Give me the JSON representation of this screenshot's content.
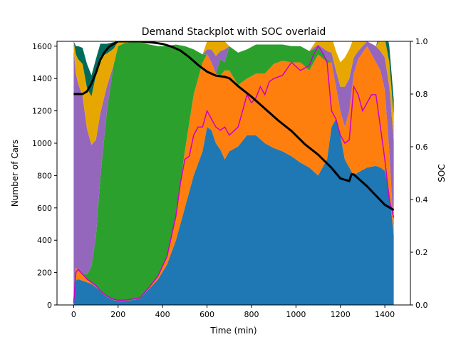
{
  "chart_data": {
    "type": "area",
    "title": "Demand Stackplot with SOC overlaid",
    "xlabel": "Time (min)",
    "ylabel": "Number of Cars",
    "y2label": "SOC",
    "xlim": [
      -75,
      1515
    ],
    "ylim": [
      0,
      1630
    ],
    "y2lim": [
      0.0,
      1.0
    ],
    "xticks": [
      0,
      200,
      400,
      600,
      800,
      1000,
      1200,
      1400
    ],
    "yticks": [
      0,
      200,
      400,
      600,
      800,
      1000,
      1200,
      1400,
      1600
    ],
    "y2ticks": [
      "0.0",
      "0.2",
      "0.4",
      "0.6",
      "0.8",
      "1.0"
    ],
    "x": [
      0,
      10,
      20,
      40,
      60,
      80,
      100,
      120,
      150,
      180,
      200,
      230,
      260,
      300,
      340,
      380,
      420,
      460,
      500,
      540,
      580,
      600,
      620,
      640,
      660,
      680,
      700,
      740,
      780,
      820,
      860,
      900,
      940,
      980,
      1020,
      1060,
      1100,
      1140,
      1160,
      1180,
      1200,
      1220,
      1240,
      1260,
      1280,
      1320,
      1360,
      1380,
      1400,
      1420,
      1440
    ],
    "series": [
      {
        "color": "#1f77b4",
        "values": [
          10,
          150,
          160,
          150,
          140,
          130,
          110,
          80,
          50,
          30,
          25,
          25,
          30,
          40,
          100,
          160,
          250,
          400,
          600,
          800,
          950,
          1100,
          1080,
          1000,
          960,
          900,
          950,
          980,
          1050,
          1050,
          1000,
          970,
          950,
          920,
          880,
          850,
          800,
          900,
          1100,
          1150,
          1050,
          900,
          850,
          800,
          820,
          850,
          860,
          850,
          830,
          700,
          430
        ]
      },
      {
        "color": "#ff7f0e",
        "values": [
          20,
          80,
          60,
          40,
          20,
          10,
          10,
          5,
          5,
          5,
          5,
          5,
          5,
          5,
          10,
          20,
          50,
          150,
          350,
          500,
          550,
          450,
          420,
          430,
          460,
          550,
          500,
          380,
          350,
          380,
          430,
          520,
          560,
          580,
          620,
          600,
          750,
          600,
          400,
          200,
          150,
          200,
          350,
          630,
          700,
          750,
          640,
          600,
          500,
          250,
          30
        ]
      },
      {
        "color": "#2ca02c",
        "values": [
          0,
          0,
          0,
          0,
          30,
          100,
          300,
          700,
          1150,
          1450,
          1570,
          1590,
          1590,
          1580,
          1500,
          1420,
          1300,
          1060,
          650,
          280,
          50,
          0,
          0,
          0,
          100,
          50,
          150,
          200,
          180,
          180,
          180,
          120,
          100,
          100,
          100,
          120,
          40,
          20,
          0,
          0,
          0,
          0,
          0,
          0,
          0,
          0,
          0,
          0,
          0,
          0,
          0
        ]
      },
      {
        "color": "#d62728",
        "values": [
          0,
          0,
          0,
          0,
          0,
          0,
          0,
          0,
          0,
          0,
          0,
          0,
          0,
          0,
          0,
          0,
          0,
          0,
          0,
          0,
          0,
          0,
          0,
          0,
          0,
          0,
          0,
          0,
          0,
          0,
          0,
          0,
          0,
          0,
          0,
          0,
          0,
          0,
          0,
          0,
          0,
          0,
          0,
          0,
          0,
          0,
          0,
          0,
          0,
          0,
          0
        ]
      },
      {
        "color": "#9467bd",
        "values": [
          1550,
          1200,
          1150,
          1100,
          900,
          750,
          600,
          400,
          150,
          0,
          0,
          0,
          0,
          0,
          0,
          0,
          0,
          0,
          0,
          0,
          0,
          30,
          80,
          110,
          50,
          80,
          0,
          0,
          0,
          0,
          0,
          0,
          0,
          0,
          0,
          0,
          20,
          50,
          60,
          100,
          150,
          250,
          200,
          100,
          50,
          30,
          100,
          120,
          200,
          400,
          560
        ]
      },
      {
        "color": "#e6a800",
        "values": [
          50,
          120,
          150,
          200,
          250,
          300,
          400,
          350,
          200,
          100,
          30,
          10,
          10,
          5,
          0,
          0,
          0,
          0,
          0,
          0,
          0,
          50,
          80,
          90,
          60,
          50,
          0,
          0,
          0,
          0,
          0,
          0,
          0,
          0,
          0,
          0,
          40,
          60,
          100,
          120,
          150,
          180,
          180,
          120,
          60,
          0,
          0,
          80,
          120,
          150,
          150
        ]
      },
      {
        "color": "#006b5a",
        "values": [
          0,
          50,
          80,
          100,
          150,
          130,
          100,
          80,
          60,
          40,
          0,
          0,
          0,
          0,
          0,
          0,
          0,
          0,
          0,
          0,
          0,
          0,
          0,
          0,
          0,
          0,
          0,
          0,
          0,
          0,
          0,
          0,
          0,
          0,
          0,
          0,
          0,
          0,
          0,
          0,
          0,
          0,
          0,
          0,
          0,
          0,
          0,
          40,
          100,
          100,
          100
        ]
      }
    ],
    "magenta_line": {
      "color": "#cc00cc",
      "x": [
        0,
        10,
        20,
        40,
        60,
        80,
        100,
        120,
        150,
        180,
        200,
        230,
        260,
        300,
        340,
        380,
        420,
        460,
        480,
        500,
        520,
        540,
        560,
        580,
        600,
        620,
        640,
        660,
        680,
        700,
        740,
        780,
        800,
        820,
        840,
        860,
        880,
        900,
        940,
        980,
        1020,
        1060,
        1080,
        1100,
        1120,
        1140,
        1160,
        1180,
        1200,
        1220,
        1240,
        1260,
        1280,
        1300,
        1320,
        1340,
        1360,
        1380,
        1400,
        1420,
        1440
      ],
      "values": [
        10,
        200,
        220,
        190,
        160,
        140,
        120,
        85,
        55,
        35,
        30,
        30,
        35,
        45,
        110,
        180,
        300,
        550,
        750,
        900,
        920,
        1050,
        1100,
        1100,
        1200,
        1150,
        1100,
        1080,
        1100,
        1050,
        1100,
        1300,
        1250,
        1280,
        1350,
        1300,
        1380,
        1400,
        1420,
        1500,
        1450,
        1480,
        1550,
        1600,
        1560,
        1500,
        1200,
        1150,
        1050,
        1000,
        1020,
        1350,
        1300,
        1200,
        1250,
        1300,
        1300,
        1100,
        900,
        650,
        540
      ]
    },
    "soc_line": {
      "color": "#000000",
      "x": [
        0,
        40,
        60,
        80,
        100,
        120,
        140,
        160,
        180,
        200,
        240,
        300,
        360,
        400,
        440,
        480,
        520,
        560,
        600,
        640,
        680,
        700,
        740,
        800,
        860,
        920,
        980,
        1040,
        1100,
        1160,
        1200,
        1240,
        1250,
        1260,
        1280,
        1320,
        1360,
        1400,
        1420,
        1440
      ],
      "values": [
        0.8,
        0.8,
        0.81,
        0.84,
        0.88,
        0.93,
        0.96,
        0.98,
        0.99,
        1.0,
        1.0,
        1.0,
        0.995,
        0.99,
        0.98,
        0.965,
        0.94,
        0.91,
        0.885,
        0.87,
        0.865,
        0.86,
        0.83,
        0.79,
        0.745,
        0.7,
        0.66,
        0.61,
        0.57,
        0.52,
        0.48,
        0.47,
        0.495,
        0.495,
        0.48,
        0.45,
        0.415,
        0.38,
        0.37,
        0.36
      ]
    }
  }
}
